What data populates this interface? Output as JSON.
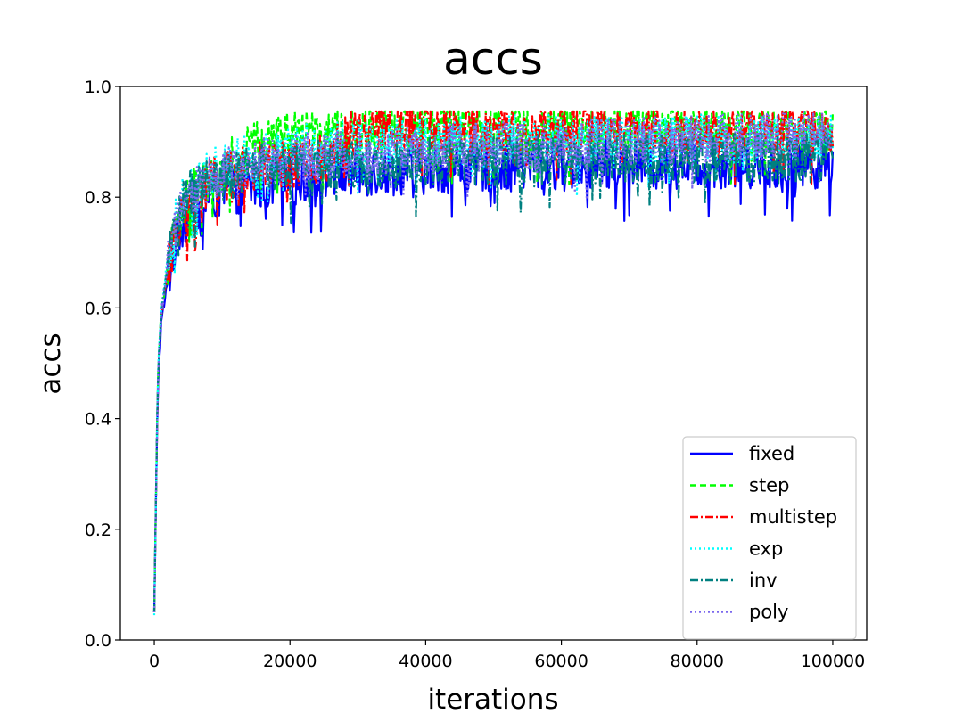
{
  "chart_data": {
    "type": "line",
    "title": "accs",
    "xlabel": "iterations",
    "ylabel": "accs",
    "xlim": [
      -5000,
      105000
    ],
    "ylim": [
      0.0,
      1.0
    ],
    "xticks": [
      0,
      20000,
      40000,
      60000,
      80000,
      100000
    ],
    "yticks": [
      0.0,
      0.2,
      0.4,
      0.6,
      0.8,
      1.0
    ],
    "xtick_labels": [
      "0",
      "20000",
      "40000",
      "60000",
      "80000",
      "100000"
    ],
    "ytick_labels": [
      "0.0",
      "0.2",
      "0.4",
      "0.6",
      "0.8",
      "1.0"
    ],
    "grid": false,
    "legend_position": "lower-right",
    "x": [
      0,
      500,
      1000,
      2000,
      3000,
      4000,
      5000,
      7500,
      10000,
      15000,
      20000,
      25000,
      30000,
      40000,
      50000,
      60000,
      70000,
      80000,
      90000,
      100000
    ],
    "series": [
      {
        "name": "fixed",
        "color": "#0000ff",
        "dash": "solid",
        "values": [
          0.05,
          0.45,
          0.57,
          0.65,
          0.71,
          0.75,
          0.77,
          0.79,
          0.81,
          0.82,
          0.83,
          0.84,
          0.845,
          0.85,
          0.855,
          0.855,
          0.86,
          0.86,
          0.86,
          0.86
        ]
      },
      {
        "name": "step",
        "color": "#00ff00",
        "dash": "dashed",
        "values": [
          0.05,
          0.46,
          0.59,
          0.68,
          0.74,
          0.78,
          0.8,
          0.83,
          0.85,
          0.9,
          0.91,
          0.915,
          0.92,
          0.925,
          0.925,
          0.925,
          0.925,
          0.925,
          0.925,
          0.925
        ]
      },
      {
        "name": "multistep",
        "color": "#ff0000",
        "dash": "dashdot",
        "values": [
          0.05,
          0.46,
          0.58,
          0.67,
          0.73,
          0.77,
          0.79,
          0.82,
          0.84,
          0.855,
          0.86,
          0.87,
          0.92,
          0.925,
          0.925,
          0.925,
          0.925,
          0.925,
          0.925,
          0.925
        ]
      },
      {
        "name": "exp",
        "color": "#00ffff",
        "dash": "dotted",
        "values": [
          0.045,
          0.47,
          0.6,
          0.69,
          0.75,
          0.79,
          0.81,
          0.84,
          0.86,
          0.875,
          0.885,
          0.89,
          0.895,
          0.9,
          0.905,
          0.905,
          0.905,
          0.905,
          0.905,
          0.905
        ]
      },
      {
        "name": "inv",
        "color": "#008080",
        "dash": "dashdot",
        "values": [
          0.05,
          0.46,
          0.59,
          0.68,
          0.74,
          0.78,
          0.8,
          0.82,
          0.84,
          0.85,
          0.855,
          0.86,
          0.86,
          0.865,
          0.865,
          0.87,
          0.87,
          0.87,
          0.87,
          0.87
        ]
      },
      {
        "name": "poly",
        "color": "#7b68ee",
        "dash": "dotted",
        "values": [
          0.05,
          0.46,
          0.59,
          0.68,
          0.74,
          0.78,
          0.8,
          0.83,
          0.85,
          0.865,
          0.87,
          0.875,
          0.88,
          0.885,
          0.89,
          0.895,
          0.9,
          0.905,
          0.91,
          0.915
        ]
      }
    ]
  }
}
